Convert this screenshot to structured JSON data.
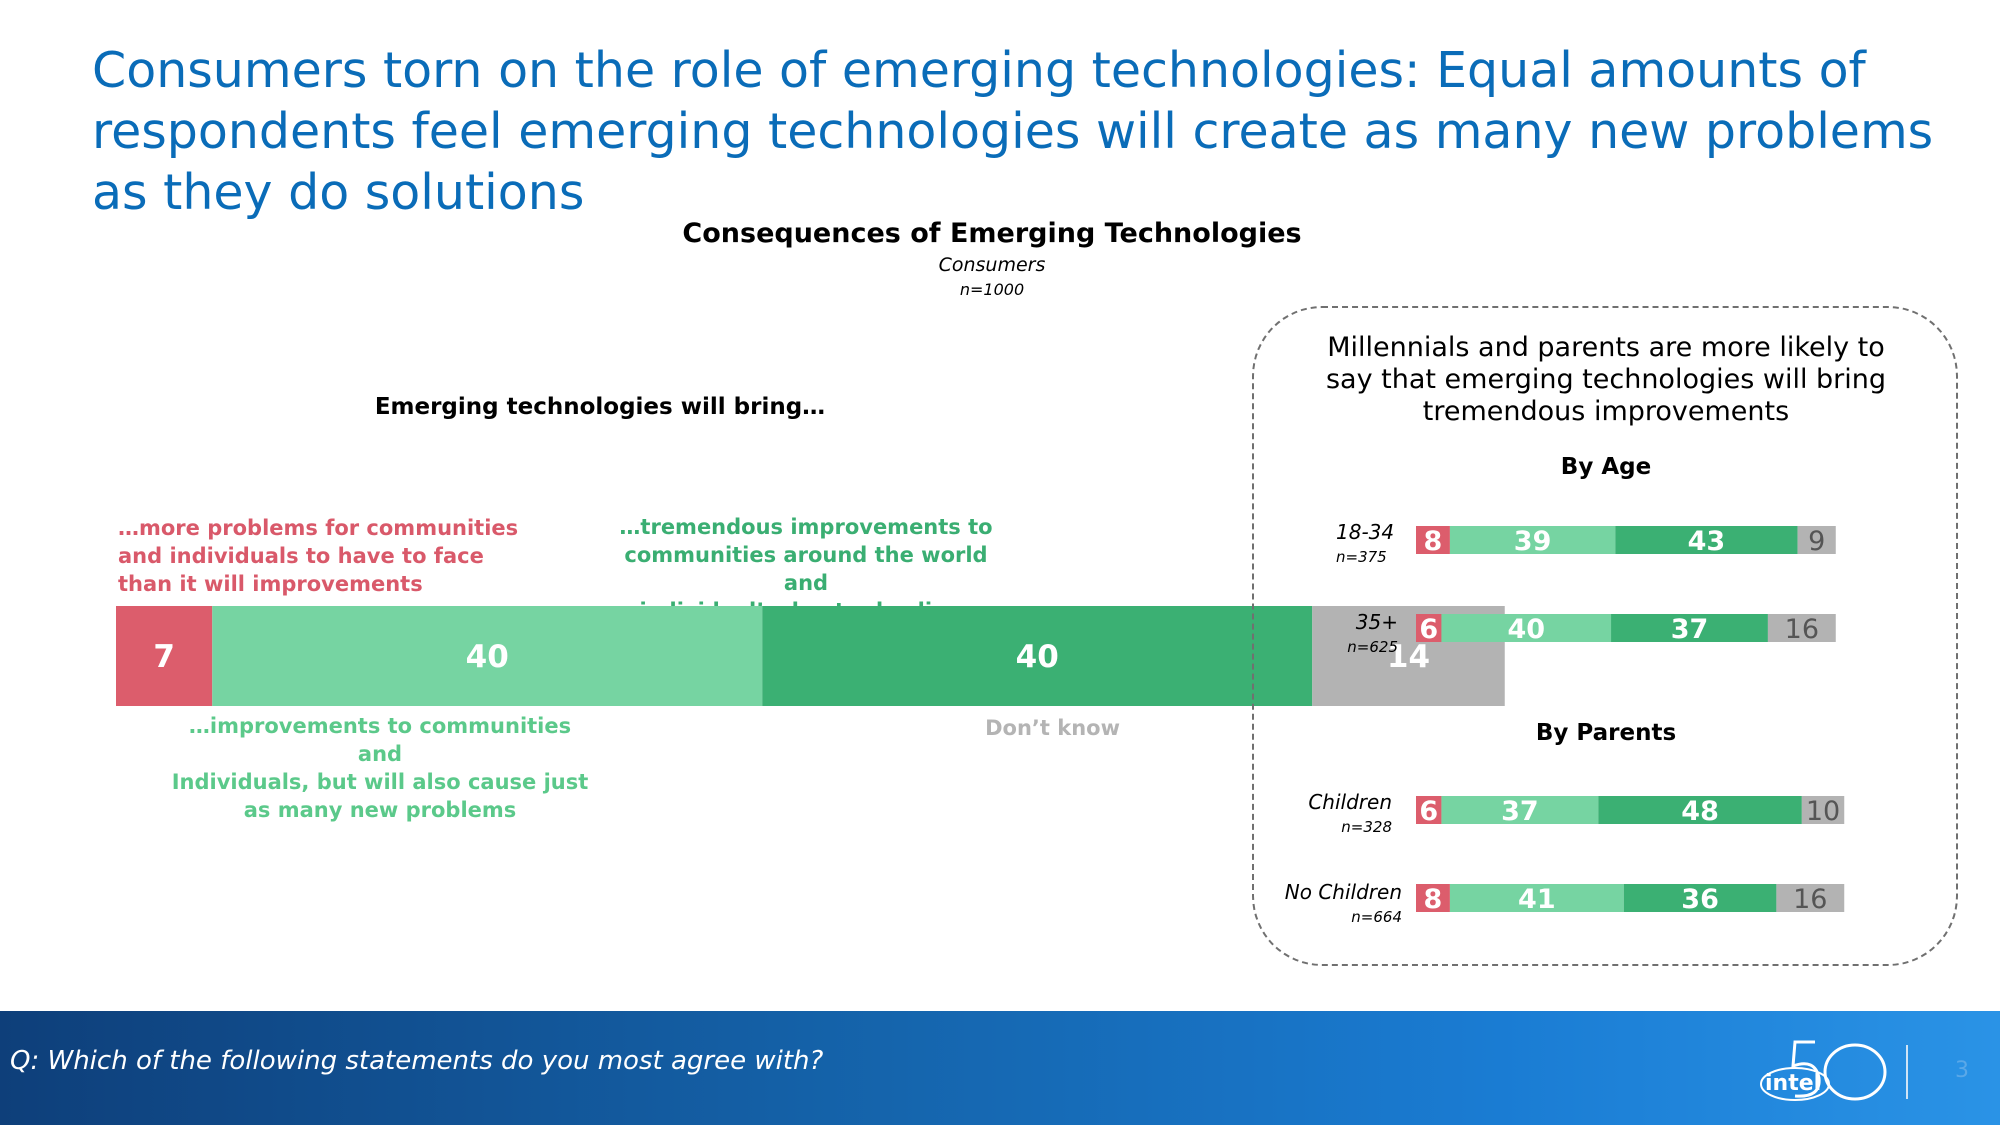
{
  "slide": {
    "title": "Consumers torn on the role of emerging technologies: Equal amounts of respondents feel emerging technologies will create as many new problems as they do solutions",
    "question": "Q: Which of the following statements do you most agree with?",
    "page_number": "3",
    "logo_text": "intel",
    "logo_mark": "50"
  },
  "chart_data": [
    {
      "type": "bar",
      "orientation": "horizontal-stacked",
      "title": "Consequences of Emerging Technologies",
      "subtitle": "Consumers",
      "sample": "n=1000",
      "heading": "Emerging technologies will bring…",
      "categories": [
        "Consumers"
      ],
      "series": [
        {
          "name": "…more problems for communities and individuals to have to face than it will improvements",
          "values": [
            7
          ],
          "color": "#dc5d6c"
        },
        {
          "name": "…improvements to communities and Individuals, but will also cause just as many new problems",
          "values": [
            40
          ],
          "color": "#76d4a2"
        },
        {
          "name": "…tremendous improvements to communities around the world and individual’s day-to-day lives",
          "values": [
            40
          ],
          "color": "#3bb073"
        },
        {
          "name": "Don’t know",
          "values": [
            14
          ],
          "color": "#b3b3b3"
        }
      ],
      "labels": {
        "problems": [
          "…more problems for communities",
          "and individuals to have to face",
          "than it will improvements"
        ],
        "improvements_both": [
          "…improvements to communities and",
          "Individuals, but will also cause just",
          "as many new problems"
        ],
        "tremendous": [
          "…tremendous improvements to",
          "communities around the world and",
          "individual’s day-to-day lives"
        ],
        "dont_know": "Don’t know"
      }
    },
    {
      "type": "bar",
      "orientation": "horizontal-stacked",
      "title": "Millennials and parents are more likely to say that emerging technologies will bring tremendous improvements",
      "title_lines": [
        "Millennials and parents are more likely to",
        "say that emerging technologies will bring",
        "tremendous improvements"
      ],
      "groups": [
        {
          "heading": "By Age",
          "rows": [
            {
              "label": "18-34",
              "n": "n=375",
              "values": [
                8,
                39,
                43,
                9
              ]
            },
            {
              "label": "35+",
              "n": "n=625",
              "values": [
                6,
                40,
                37,
                16
              ]
            }
          ]
        },
        {
          "heading": "By Parents",
          "rows": [
            {
              "label": "Children",
              "n": "n=328",
              "values": [
                6,
                37,
                48,
                10
              ]
            },
            {
              "label": "No Children",
              "n": "n=664",
              "values": [
                8,
                41,
                36,
                16
              ]
            }
          ]
        }
      ],
      "series_colors": [
        "#dc5d6c",
        "#76d4a2",
        "#3bb073",
        "#b3b3b3"
      ]
    }
  ]
}
